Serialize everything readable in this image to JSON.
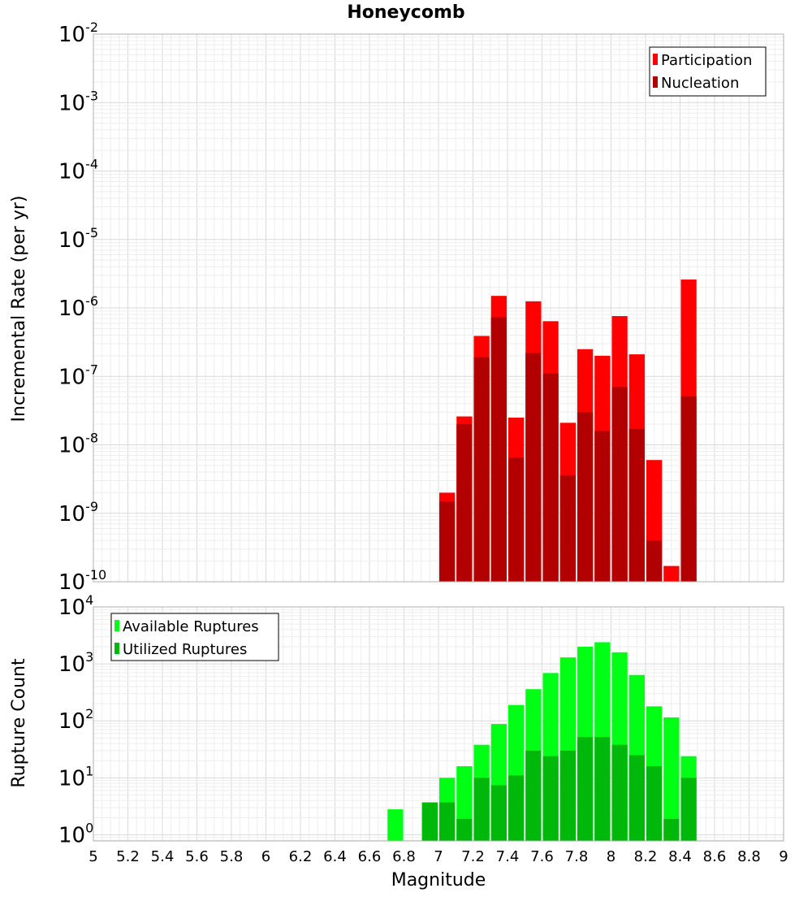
{
  "title": "Honeycomb",
  "colors": {
    "participation": "#ff0000",
    "nucleation": "#b20000",
    "available": "#00ff14",
    "utilized": "#00b80a",
    "grid_major": "#d9d9d9",
    "grid_minor": "#eeeeee",
    "frame": "#b0b0b0"
  },
  "chart_data": [
    {
      "type": "bar",
      "title": "Honeycomb",
      "xlabel": "Magnitude",
      "ylabel": "Incremental Rate (per yr)",
      "y_scale": "log",
      "xlim": [
        5,
        9
      ],
      "ylim": [
        1e-10,
        0.01
      ],
      "y_ticks": [
        {
          "base": "10",
          "exp": "-2"
        },
        {
          "base": "10",
          "exp": "-3"
        },
        {
          "base": "10",
          "exp": "-4"
        },
        {
          "base": "10",
          "exp": "-5"
        },
        {
          "base": "10",
          "exp": "-6"
        },
        {
          "base": "10",
          "exp": "-7"
        },
        {
          "base": "10",
          "exp": "-8"
        },
        {
          "base": "10",
          "exp": "-9"
        },
        {
          "base": "10",
          "exp": "-10"
        }
      ],
      "grid": true,
      "legend_position": "top-right",
      "x": [
        7.05,
        7.15,
        7.25,
        7.35,
        7.45,
        7.55,
        7.65,
        7.75,
        7.85,
        7.95,
        8.05,
        8.15,
        8.25,
        8.35,
        8.45
      ],
      "series": [
        {
          "name": "Participation",
          "values": [
            2e-09,
            2.6e-08,
            3.9e-07,
            1.5e-06,
            2.5e-08,
            1.25e-06,
            6.4e-07,
            2.1e-08,
            2.5e-07,
            2e-07,
            7.6e-07,
            2.1e-07,
            6e-09,
            1.7e-10,
            2.6e-06
          ]
        },
        {
          "name": "Nucleation",
          "values": [
            1.5e-09,
            2e-08,
            1.9e-07,
            7.3e-07,
            6.5e-09,
            2.2e-07,
            1.1e-07,
            3.6e-09,
            3e-08,
            1.6e-08,
            7e-08,
            1.7e-08,
            4e-10,
            null,
            5.1e-08
          ]
        }
      ]
    },
    {
      "type": "bar",
      "xlabel": "Magnitude",
      "ylabel": "Rupture Count",
      "y_scale": "log",
      "xlim": [
        5,
        9
      ],
      "ylim": [
        0.78,
        10000
      ],
      "y_ticks": [
        {
          "base": "10",
          "exp": "4"
        },
        {
          "base": "10",
          "exp": "3"
        },
        {
          "base": "10",
          "exp": "2"
        },
        {
          "base": "10",
          "exp": "1"
        },
        {
          "base": "10",
          "exp": "0"
        }
      ],
      "x_ticks": [
        "5",
        "5.2",
        "5.4",
        "5.6",
        "5.8",
        "6",
        "6.2",
        "6.4",
        "6.6",
        "6.8",
        "7",
        "7.2",
        "7.4",
        "7.6",
        "7.8",
        "8",
        "8.2",
        "8.4",
        "8.6",
        "8.8",
        "9"
      ],
      "grid": true,
      "legend_position": "top-left",
      "x": [
        6.75,
        6.95,
        7.05,
        7.15,
        7.25,
        7.35,
        7.45,
        7.55,
        7.65,
        7.75,
        7.85,
        7.95,
        8.05,
        8.15,
        8.25,
        8.35,
        8.45
      ],
      "series": [
        {
          "name": "Available Ruptures",
          "values": [
            2.8,
            3.7,
            10,
            16,
            38,
            88,
            190,
            360,
            690,
            1300,
            2000,
            2400,
            1600,
            640,
            180,
            115,
            24
          ]
        },
        {
          "name": "Utilized Ruptures",
          "values": [
            null,
            3.7,
            3.7,
            1.9,
            10,
            7.4,
            11,
            30,
            24,
            30,
            52,
            52,
            38,
            25,
            16,
            1.9,
            10
          ]
        }
      ]
    }
  ]
}
